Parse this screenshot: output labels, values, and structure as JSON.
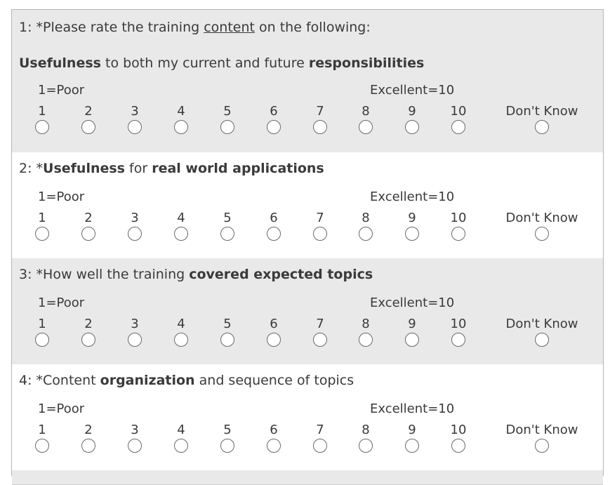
{
  "scale": {
    "low_label": "1=Poor",
    "high_label": "Excellent=10",
    "options": [
      "1",
      "2",
      "3",
      "4",
      "5",
      "6",
      "7",
      "8",
      "9",
      "10"
    ],
    "dont_know": "Don't Know"
  },
  "questions": [
    {
      "shade": "gray",
      "title": [
        {
          "t": "1: *Please rate the training "
        },
        {
          "t": "content",
          "u": true
        },
        {
          "t": " on the following:"
        }
      ],
      "subtitle": [
        {
          "t": "Usefulness",
          "b": true
        },
        {
          "t": " to both my current and future "
        },
        {
          "t": "responsibilities",
          "b": true
        }
      ]
    },
    {
      "shade": "white",
      "title": [
        {
          "t": "2: *"
        },
        {
          "t": "Usefulness",
          "b": true
        },
        {
          "t": " for "
        },
        {
          "t": "real world applications",
          "b": true
        }
      ]
    },
    {
      "shade": "gray",
      "title": [
        {
          "t": "3: *How well the training "
        },
        {
          "t": "covered expected topics",
          "b": true
        }
      ]
    },
    {
      "shade": "white",
      "title": [
        {
          "t": "4: *Content "
        },
        {
          "t": "organization",
          "b": true
        },
        {
          "t": " and sequence of topics"
        }
      ]
    }
  ]
}
